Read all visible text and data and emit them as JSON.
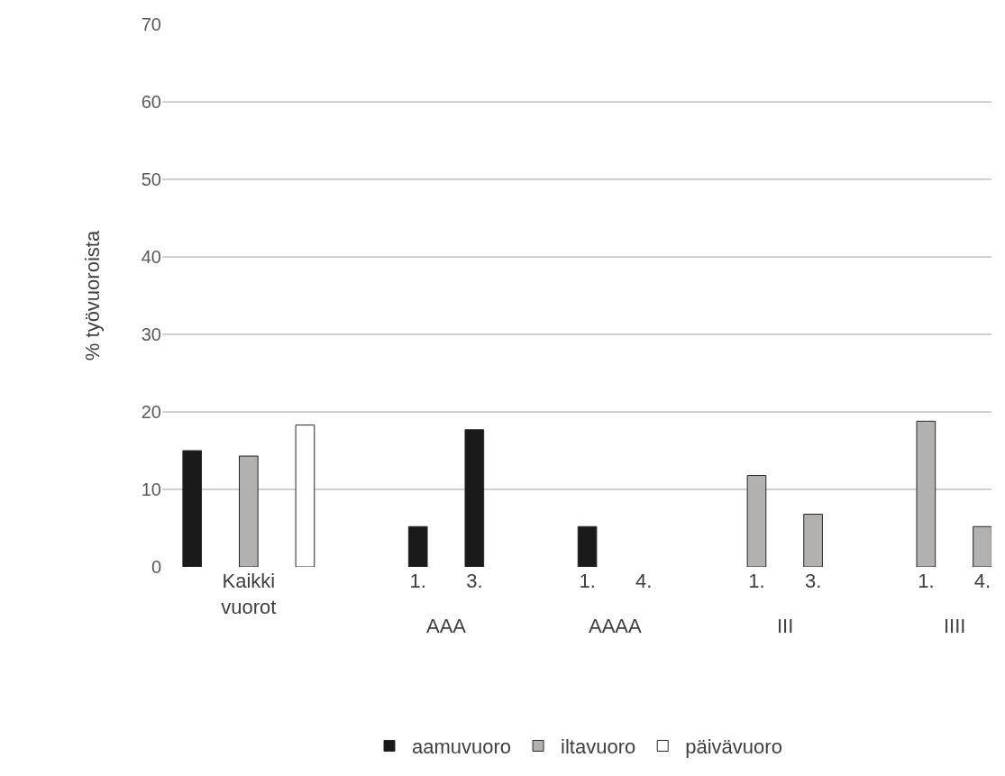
{
  "chart_data": {
    "type": "bar",
    "ylabel": "% työvuoroista",
    "categories": [
      null,
      "Kaikki vuorot",
      null,
      null,
      "1.",
      "3.",
      null,
      "1.",
      "4.",
      null,
      "1.",
      "3.",
      null,
      "1.",
      "4."
    ],
    "series": [
      {
        "name": "aamuvuoro",
        "color": "#1a1a1a",
        "values": [
          15,
          null,
          null,
          null,
          5.2,
          17.7,
          null,
          5.2,
          null,
          null,
          null,
          null,
          null,
          null,
          null
        ]
      },
      {
        "name": "iltavuoro",
        "color": "#b3b0b0",
        "values": [
          null,
          14.3,
          null,
          null,
          null,
          null,
          null,
          null,
          null,
          null,
          11.8,
          6.8,
          null,
          18.8,
          5.2
        ]
      },
      {
        "name": "päivävuoro",
        "color": "#ffffff",
        "values": [
          null,
          null,
          18.3,
          null,
          null,
          null,
          null,
          null,
          null,
          null,
          null,
          null,
          null,
          null,
          null
        ]
      }
    ],
    "annotations": [
      "AAA",
      "AAAA",
      "III",
      "IIII"
    ],
    "ylim": [
      0,
      70
    ],
    "yticks": [
      0,
      10,
      20,
      30,
      40,
      50,
      60,
      70
    ],
    "grid": "y",
    "legend": "bottom"
  }
}
